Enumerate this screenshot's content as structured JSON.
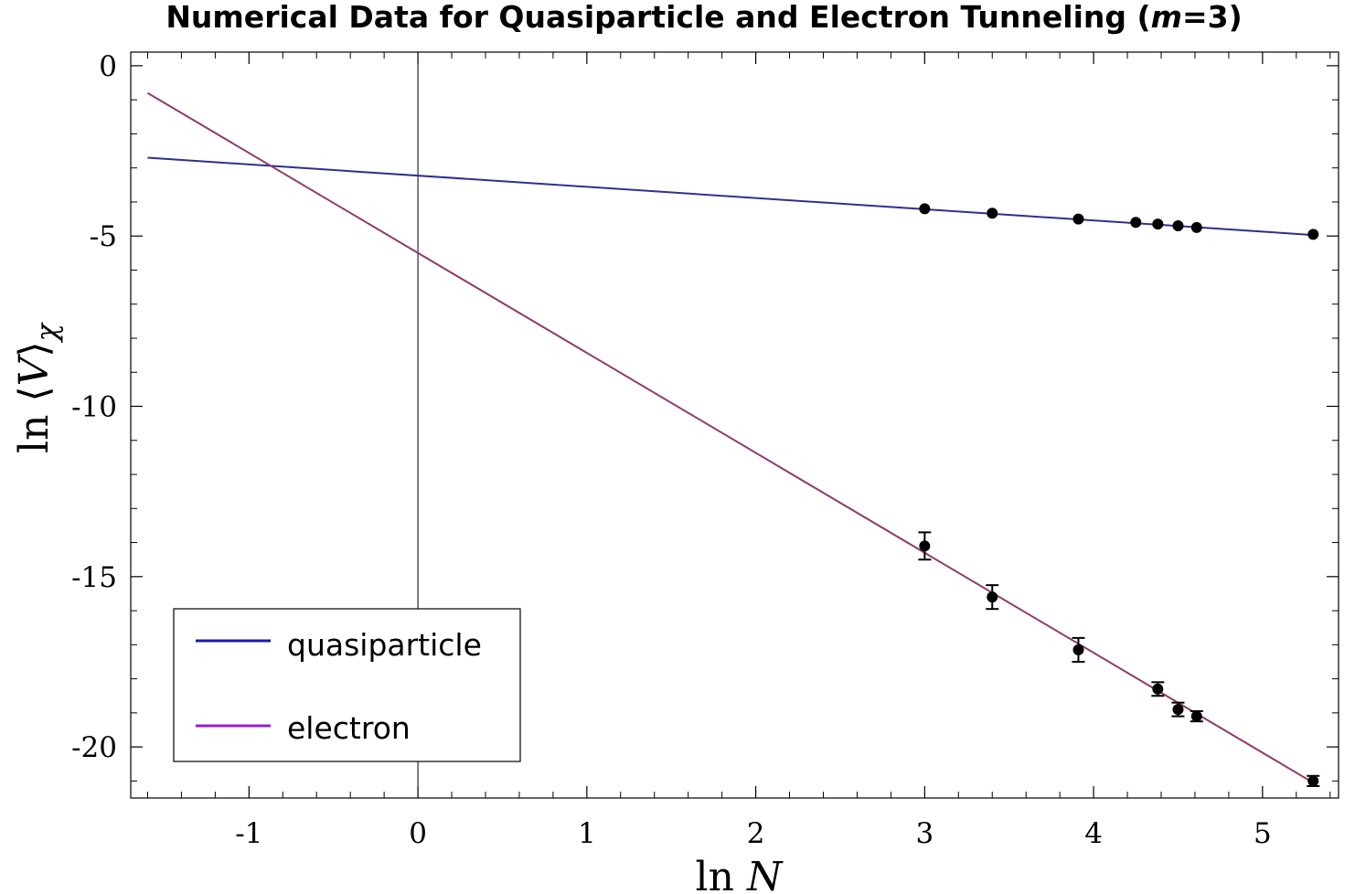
{
  "chart_data": {
    "type": "scatter",
    "title_prefix": "Numerical Data for Quasiparticle and Electron Tunneling (",
    "title_var": "m",
    "title_suffix": "=3)",
    "xlabel_fn": "ln",
    "xlabel_var": "N",
    "ylabel_fn": "ln",
    "ylabel_left": "⟨",
    "ylabel_var": "V",
    "ylabel_right": "⟩",
    "ylabel_sub": "χ",
    "xlim": [
      -1.7,
      5.45
    ],
    "ylim": [
      -21.5,
      0.4
    ],
    "x_ticks": [
      -1,
      0,
      1,
      2,
      3,
      4,
      5
    ],
    "x_tick_labels": [
      "-1",
      "0",
      "1",
      "2",
      "3",
      "4",
      "5"
    ],
    "y_ticks": [
      0,
      -5,
      -10,
      -15,
      -20
    ],
    "y_tick_labels": [
      "0",
      "-5",
      "-10",
      "-15",
      "-20"
    ],
    "grid": false,
    "legend_position": "bottom-left",
    "series": [
      {
        "name": "quasiparticle",
        "color": "#2e3092",
        "legend_color": "#1a1aa8",
        "fit_line": {
          "x": [
            -1.6,
            5.3
          ],
          "y": [
            -2.7,
            -4.97
          ]
        },
        "x": [
          3.0,
          3.4,
          3.91,
          4.25,
          4.38,
          4.5,
          4.61,
          5.3
        ],
        "y": [
          -4.2,
          -4.33,
          -4.5,
          -4.6,
          -4.65,
          -4.7,
          -4.75,
          -4.95
        ],
        "error": [
          0,
          0,
          0,
          0,
          0,
          0,
          0,
          0
        ]
      },
      {
        "name": "electron",
        "color": "#8e3a6e",
        "legend_color": "#9a1cc8",
        "fit_line": {
          "x": [
            -1.6,
            5.3
          ],
          "y": [
            -0.8,
            -21.05
          ]
        },
        "x": [
          3.0,
          3.4,
          3.91,
          4.38,
          4.5,
          4.61,
          5.3
        ],
        "y": [
          -14.1,
          -15.6,
          -17.15,
          -18.3,
          -18.9,
          -19.1,
          -21.0
        ],
        "error": [
          0.4,
          0.35,
          0.35,
          0.2,
          0.2,
          0.15,
          0.15
        ]
      }
    ]
  }
}
